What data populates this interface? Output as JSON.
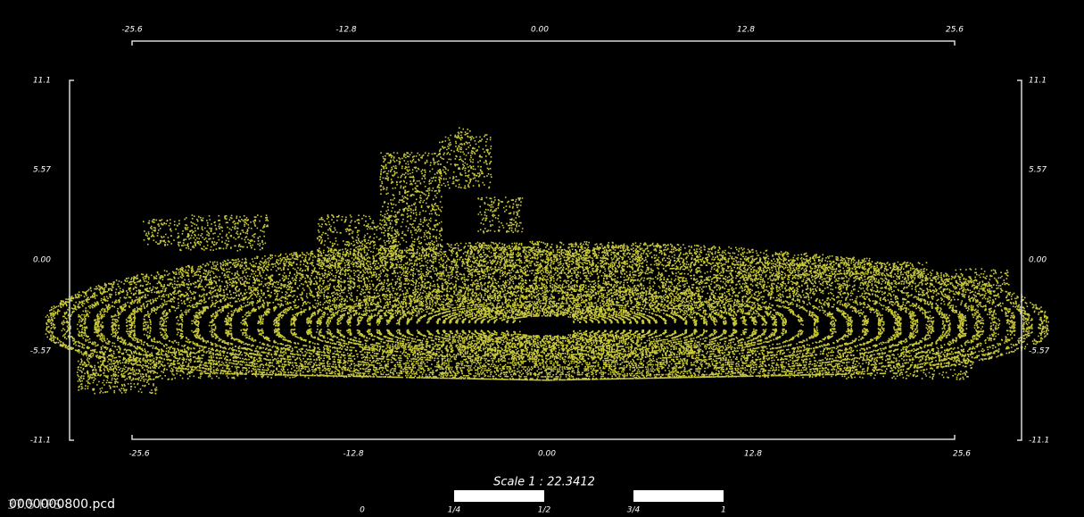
{
  "axes": {
    "top": [
      "-25.6",
      "-12.8",
      "0.00",
      "12.8",
      "25.6"
    ],
    "bottom": [
      "-25.6",
      "-12.8",
      "0.00",
      "12.8",
      "25.6"
    ],
    "left": [
      "11.1",
      "5.57",
      "0.00",
      "-5.57",
      "-11.1"
    ],
    "right": [
      "11.1",
      "5.57",
      "0.00",
      "-5.57",
      "-11.1"
    ]
  },
  "scale": {
    "title": "Scale 1 : 22.3412",
    "labels": [
      "0",
      "1/4",
      "1/2",
      "3/4",
      "1"
    ]
  },
  "file": "0000000800.pcd",
  "fps": "37.5 FPS"
}
